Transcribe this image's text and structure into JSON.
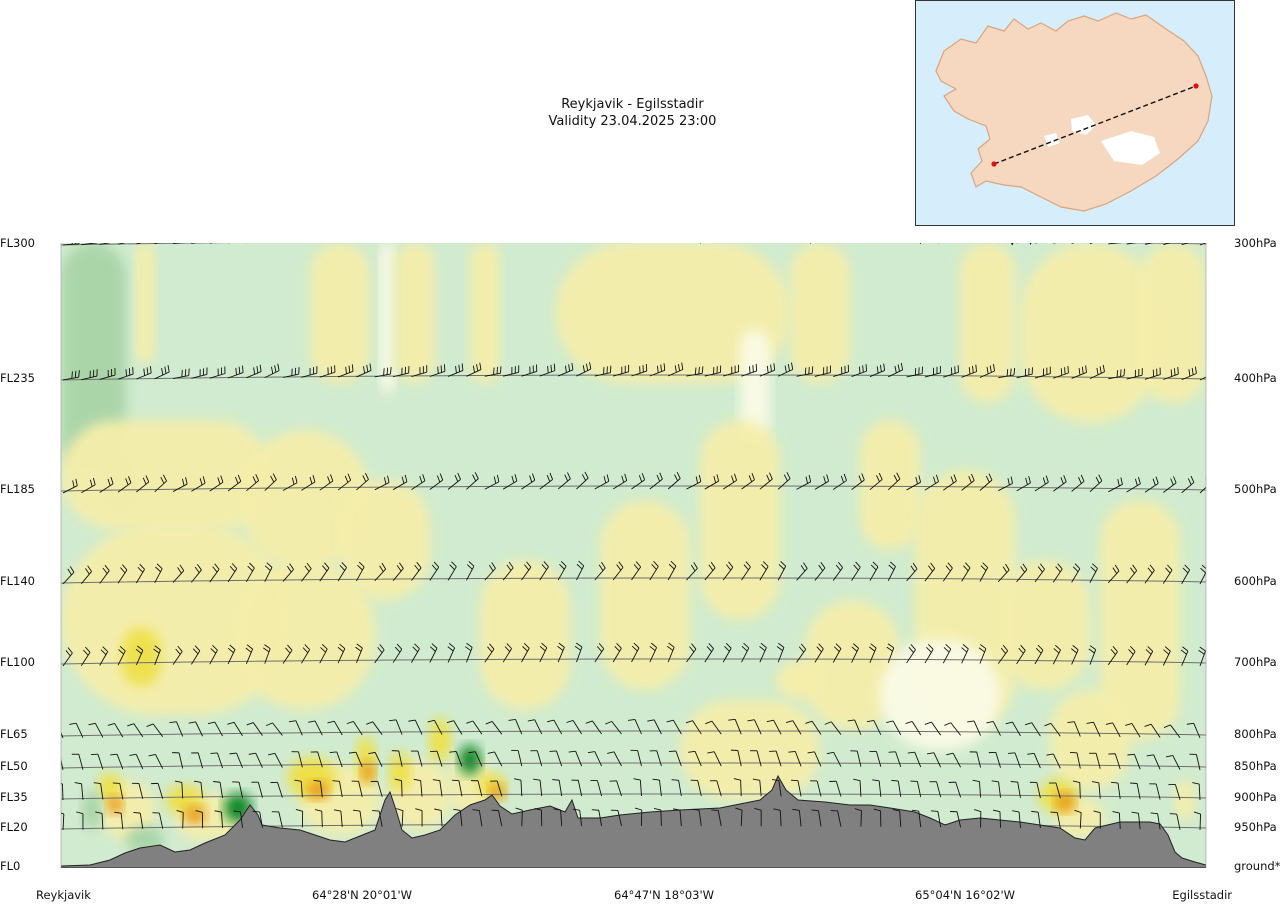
{
  "title": {
    "route": "Reykjavik - Egilsstadir",
    "validity": "Validity 23.04.2025 23:00"
  },
  "chart_data": {
    "type": "vertical_cross_section",
    "title": "Reykjavik - Egilsstadir",
    "subtitle": "Validity 23.04.2025 23:00",
    "left_axis_levels": [
      "FL300",
      "FL235",
      "FL185",
      "FL140",
      "FL100",
      "FL65",
      "FL50",
      "FL35",
      "FL20",
      "FL0"
    ],
    "right_axis_levels": [
      "300hPa",
      "400hPa",
      "500hPa",
      "600hPa",
      "700hPa",
      "800hPa",
      "850hPa",
      "900hPa",
      "950hPa",
      "ground*"
    ],
    "x_tick_labels": [
      "Reykjavik",
      "64°28'N 20°01'W",
      "64°47'N 18°03'W",
      "65°04'N 16°02'W",
      "Egilsstadir"
    ],
    "route_start": "Reykjavik",
    "route_end": "Egilsstadir",
    "terrain_profile_note": "grey area = terrain height along route",
    "fill_colors": {
      "strong_positive": "#0d8a2a",
      "positive": "#a9d4a8",
      "weak_positive": "#d0ebcf",
      "neutral": "#fbfbe6",
      "weak_negative": "#f5eeaa",
      "negative": "#eee04a",
      "strong_negative": "#e89a1c",
      "terrain": "#808080"
    },
    "wind_barbs": "rows of wind barbs plotted at each pressure level"
  },
  "map": {
    "description_icon": "iceland-route-map"
  }
}
